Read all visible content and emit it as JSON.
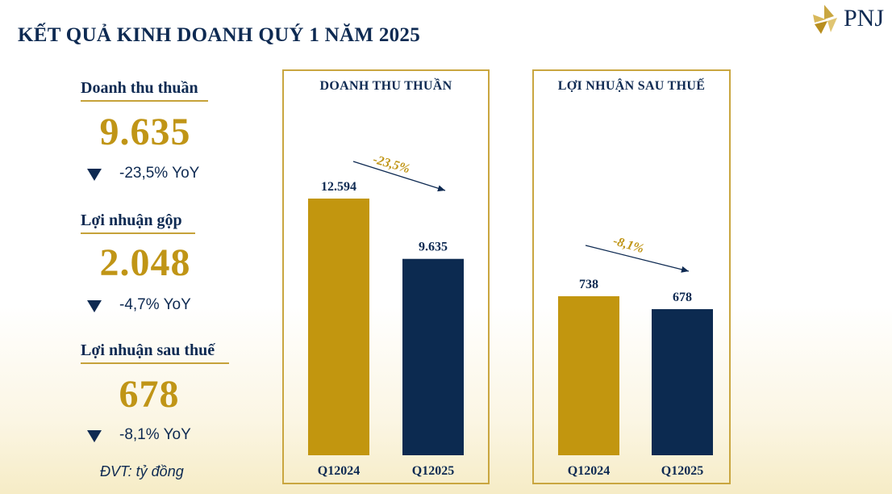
{
  "header": {
    "title": "KẾT QUẢ KINH DOANH QUÝ 1 NĂM 2025",
    "logo_text": "PNJ"
  },
  "kpis": [
    {
      "label": "Doanh thu thuần",
      "value": "9.635",
      "change": "-23,5% YoY"
    },
    {
      "label": "Lợi nhuận gộp",
      "value": "2.048",
      "change": "-4,7% YoY"
    },
    {
      "label": "Lợi nhuận sau thuế",
      "value": "678",
      "change": "-8,1% YoY"
    }
  ],
  "unit_note": "ĐVT: tỷ đồng",
  "colors": {
    "navy": "#0e2a52",
    "gold": "#c09516",
    "bar_gold": "#c2960f",
    "bar_navy": "#0c2a50",
    "panel_border": "#c9a640"
  },
  "chart_data": [
    {
      "type": "bar",
      "title": "DOANH THU THUẦN",
      "categories": [
        "Q12024",
        "Q12025"
      ],
      "values": [
        12594,
        9635
      ],
      "value_labels": [
        "12.594",
        "9.635"
      ],
      "change_annotation": "-23,5%",
      "bar_colors": [
        "#c2960f",
        "#0c2a50"
      ]
    },
    {
      "type": "bar",
      "title": "LỢI NHUẬN SAU THUẾ",
      "categories": [
        "Q12024",
        "Q12025"
      ],
      "values": [
        738,
        678
      ],
      "value_labels": [
        "738",
        "678"
      ],
      "change_annotation": "-8,1%",
      "bar_colors": [
        "#c2960f",
        "#0c2a50"
      ]
    }
  ]
}
